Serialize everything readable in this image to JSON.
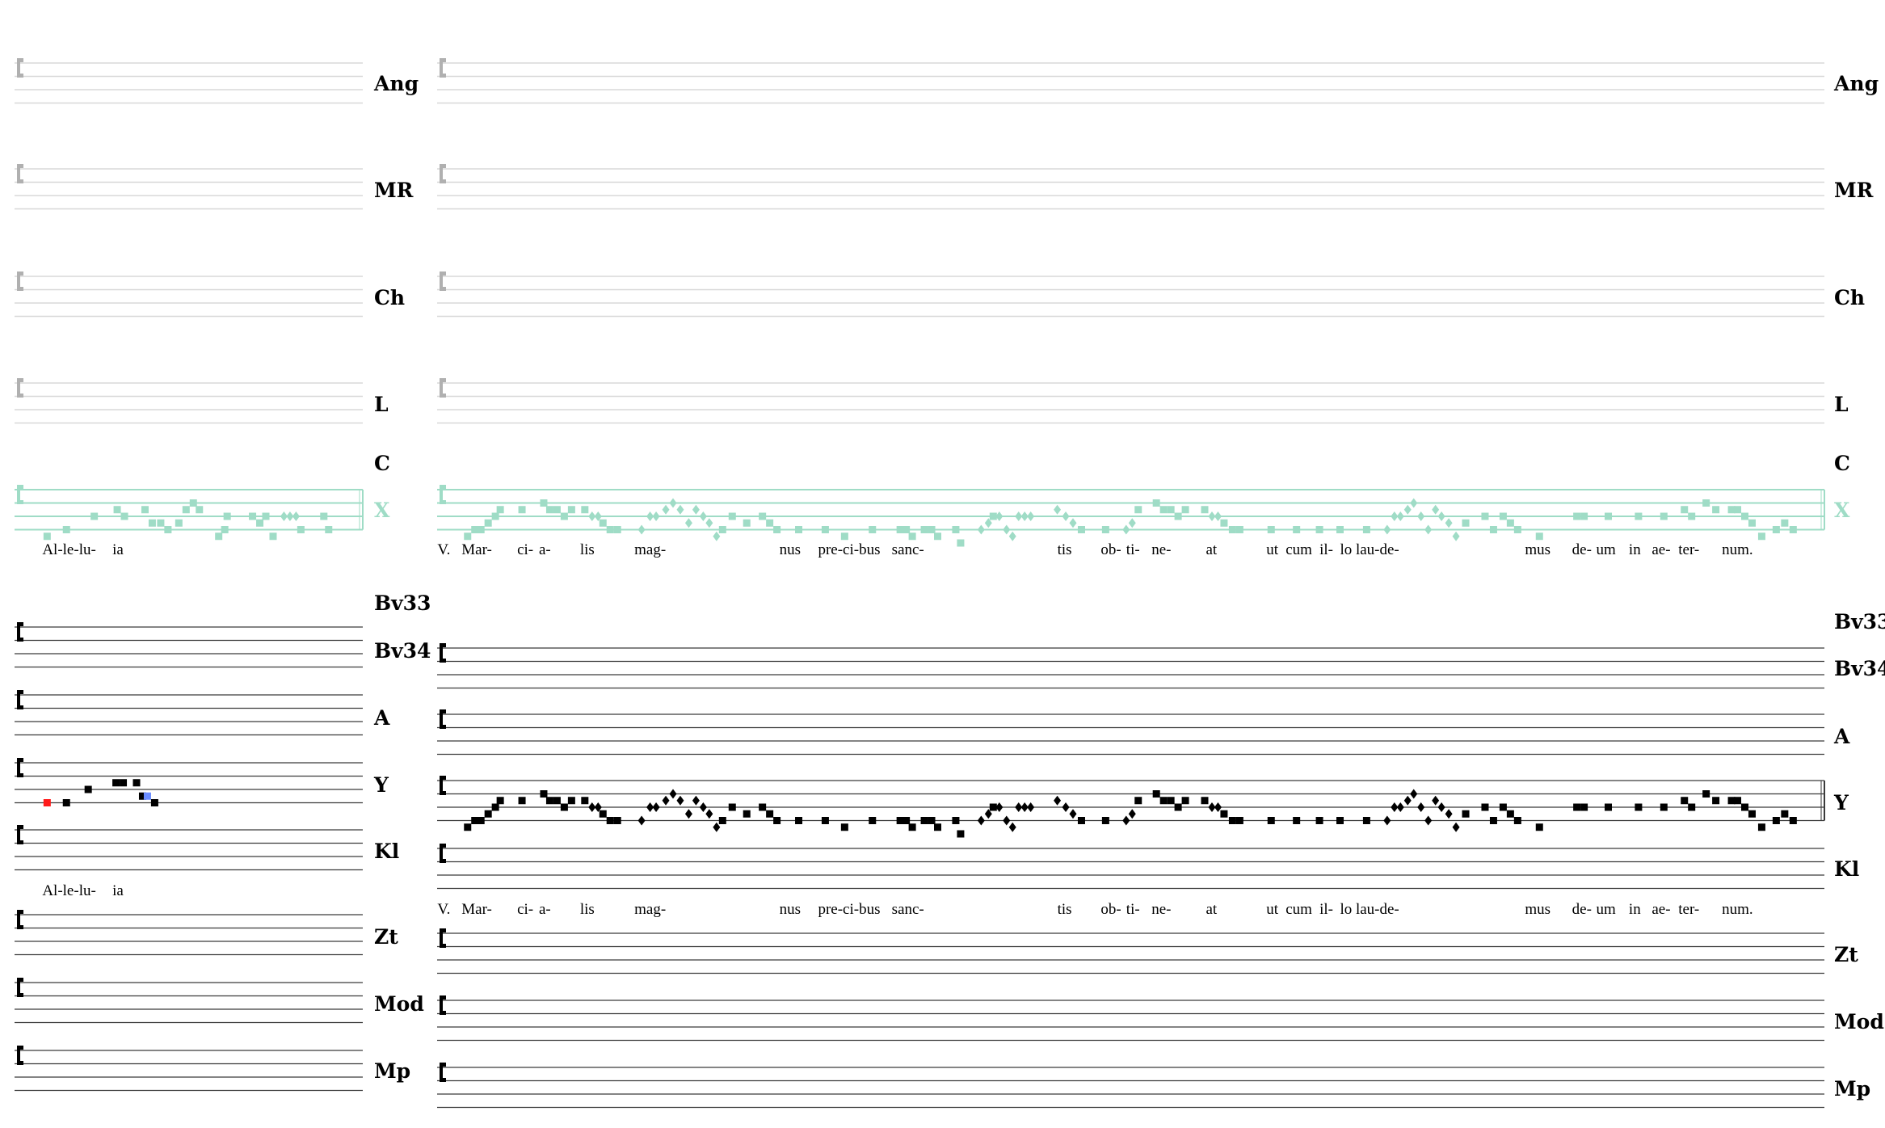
{
  "colors": {
    "upper_staff": "#d8d8d8",
    "upper_clef": "#b0b0b0",
    "highlight_staff": "#9fdcc6",
    "lower_staff": "#3a3a3a",
    "notes": "#000000",
    "selected_note_red": "#ff1a1a",
    "selected_note_blue": "#6a8cff"
  },
  "upper_section": {
    "manuscripts": [
      "Ang",
      "MR",
      "Ch",
      "L",
      "C",
      "X"
    ],
    "highlighted": "X",
    "lyrics_left": [
      "Al-le-lu-",
      "ia"
    ],
    "lyrics_right": [
      "V.",
      "Mar-",
      "ci-",
      "a-",
      "lis",
      "mag-",
      "nus",
      "pre-ci-bus",
      "sanc-",
      "tis",
      "ob-",
      "ti-",
      "ne-",
      "at",
      "ut",
      "cum",
      "il-",
      "lo",
      "lau-de-",
      "mus",
      "de-",
      "um",
      "in",
      "ae-",
      "ter-",
      "num."
    ]
  },
  "lower_section": {
    "manuscripts": [
      "Bv33",
      "Bv34",
      "A",
      "Y",
      "Kl",
      "Zt",
      "Mod",
      "Mp"
    ],
    "with_notes": "Y",
    "lyrics_left": [
      "Al-le-lu-",
      "ia"
    ],
    "lyrics_right": [
      "V.",
      "Mar-",
      "ci-",
      "a-",
      "lis",
      "mag-",
      "nus",
      "pre-ci-bus",
      "sanc-",
      "tis",
      "ob-",
      "ti-",
      "ne-",
      "at",
      "ut",
      "cum",
      "il-",
      "lo",
      "lau-de-",
      "mus",
      "de-",
      "um",
      "in",
      "ae-",
      "ter-",
      "num."
    ]
  }
}
